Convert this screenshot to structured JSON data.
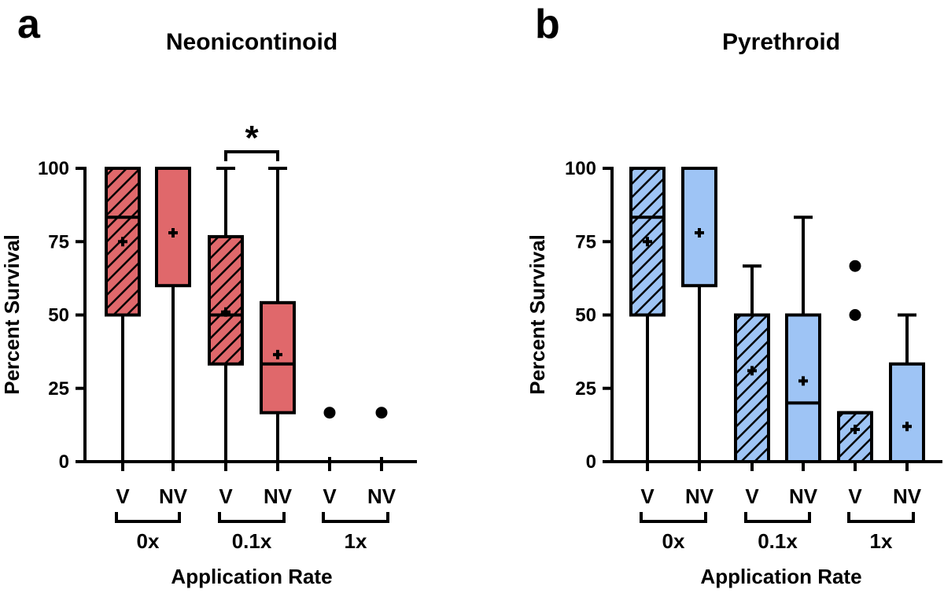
{
  "chart_data": [
    {
      "type": "box",
      "panel_label": "a",
      "title": "Neonicontinoid",
      "ylabel": "Percent Survival",
      "xlabel": "Application Rate",
      "ylim": [
        0,
        100
      ],
      "yticks": [
        "0",
        "25",
        "50",
        "75",
        "100"
      ],
      "ytick_values": [
        0,
        25,
        50,
        75,
        100
      ],
      "groups": [
        "0x",
        "0.1x",
        "1x"
      ],
      "categories": [
        "V",
        "NV",
        "V",
        "NV",
        "V",
        "NV"
      ],
      "fill_color": "#e0686b",
      "boxes": [
        {
          "category": "V",
          "group": "0x",
          "hatched": true,
          "min": 0,
          "q1": 50,
          "median": 83.3,
          "q3": 100,
          "max": 100,
          "mean": 75,
          "outliers": []
        },
        {
          "category": "NV",
          "group": "0x",
          "hatched": false,
          "min": 0,
          "q1": 60,
          "median": 100,
          "q3": 100,
          "max": 100,
          "mean": 78,
          "outliers": []
        },
        {
          "category": "V",
          "group": "0.1x",
          "hatched": true,
          "min": 0,
          "q1": 33.3,
          "median": 50,
          "q3": 76.7,
          "max": 100,
          "mean": 51,
          "outliers": []
        },
        {
          "category": "NV",
          "group": "0.1x",
          "hatched": false,
          "min": 0,
          "q1": 16.7,
          "median": 33.3,
          "q3": 54.2,
          "max": 100,
          "mean": 36.5,
          "outliers": []
        },
        {
          "category": "V",
          "group": "1x",
          "hatched": true,
          "min": 0,
          "q1": 0,
          "median": 0,
          "q3": 0,
          "max": 0,
          "mean": 0,
          "outliers": [
            16.7
          ]
        },
        {
          "category": "NV",
          "group": "1x",
          "hatched": false,
          "min": 0,
          "q1": 0,
          "median": 0,
          "q3": 0,
          "max": 0,
          "mean": 0,
          "outliers": [
            16.7
          ]
        }
      ],
      "significance": [
        {
          "between": [
            2,
            3
          ],
          "label": "*"
        }
      ]
    },
    {
      "type": "box",
      "panel_label": "b",
      "title": "Pyrethroid",
      "ylabel": "Percent Survival",
      "xlabel": "Application Rate",
      "ylim": [
        0,
        100
      ],
      "yticks": [
        "0",
        "25",
        "50",
        "75",
        "100"
      ],
      "ytick_values": [
        0,
        25,
        50,
        75,
        100
      ],
      "groups": [
        "0x",
        "0.1x",
        "1x"
      ],
      "categories": [
        "V",
        "NV",
        "V",
        "NV",
        "V",
        "NV"
      ],
      "fill_color": "#9ec4f5",
      "boxes": [
        {
          "category": "V",
          "group": "0x",
          "hatched": true,
          "min": 0,
          "q1": 50,
          "median": 83.3,
          "q3": 100,
          "max": 100,
          "mean": 75,
          "outliers": []
        },
        {
          "category": "NV",
          "group": "0x",
          "hatched": false,
          "min": 0,
          "q1": 60,
          "median": 100,
          "q3": 100,
          "max": 100,
          "mean": 78,
          "outliers": []
        },
        {
          "category": "V",
          "group": "0.1x",
          "hatched": true,
          "min": 0,
          "q1": 0,
          "median": 50,
          "q3": 50,
          "max": 66.7,
          "mean": 31,
          "outliers": []
        },
        {
          "category": "NV",
          "group": "0.1x",
          "hatched": false,
          "min": 0,
          "q1": 0,
          "median": 20,
          "q3": 50,
          "max": 83.3,
          "mean": 27.5,
          "outliers": []
        },
        {
          "category": "V",
          "group": "1x",
          "hatched": true,
          "min": 0,
          "q1": 0,
          "median": 16.7,
          "q3": 16.7,
          "max": 16.7,
          "mean": 11,
          "outliers": [
            50,
            66.7
          ]
        },
        {
          "category": "NV",
          "group": "1x",
          "hatched": false,
          "min": 0,
          "q1": 0,
          "median": 0,
          "q3": 33.3,
          "max": 50,
          "mean": 12,
          "outliers": []
        }
      ],
      "significance": []
    }
  ]
}
